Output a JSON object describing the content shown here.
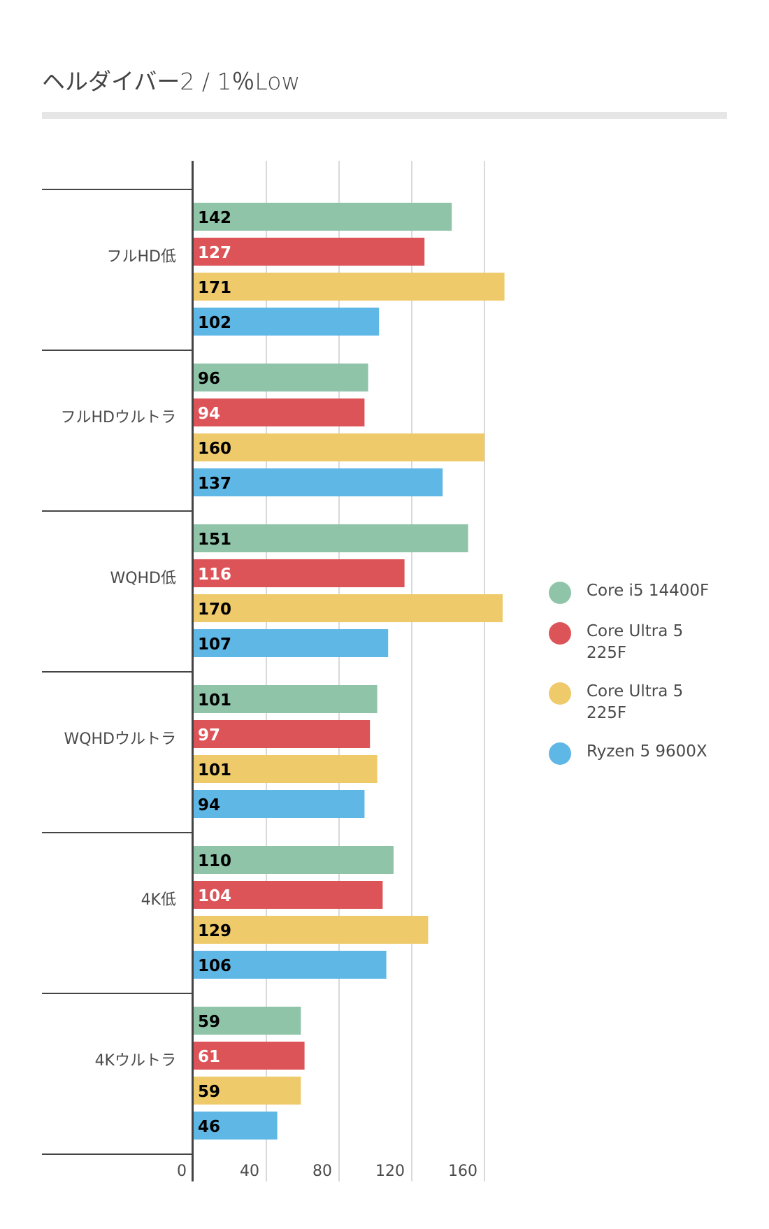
{
  "chart_data": {
    "type": "bar",
    "orientation": "horizontal",
    "title": "ヘルダイバー2 /  1％Low",
    "xlabel": "",
    "ylabel": "",
    "xlim": [
      0,
      180
    ],
    "x_ticks": [
      0,
      40,
      80,
      120,
      160
    ],
    "grid": true,
    "legend_position": "right",
    "categories": [
      "フルHD低",
      "フルHDウルトラ",
      "WQHD低",
      "WQHDウルトラ",
      "4K低",
      "4Kウルトラ"
    ],
    "series": [
      {
        "name": "Core i5 14400F",
        "color": "#8fc4a9",
        "label_color": "#000000",
        "values": [
          142,
          96,
          151,
          101,
          110,
          59
        ]
      },
      {
        "name": "Core Ultra 5 225F",
        "color": "#dd5458",
        "label_color": "#ffffff",
        "values": [
          127,
          94,
          116,
          97,
          104,
          61
        ]
      },
      {
        "name": "Core Ultra 5 225F",
        "color": "#efca6a",
        "label_color": "#000000",
        "values": [
          171,
          160,
          170,
          101,
          129,
          59
        ]
      },
      {
        "name": "Ryzen 5 9600X",
        "color": "#5fb7e5",
        "label_color": "#000000",
        "values": [
          102,
          137,
          107,
          94,
          106,
          46
        ]
      }
    ]
  }
}
